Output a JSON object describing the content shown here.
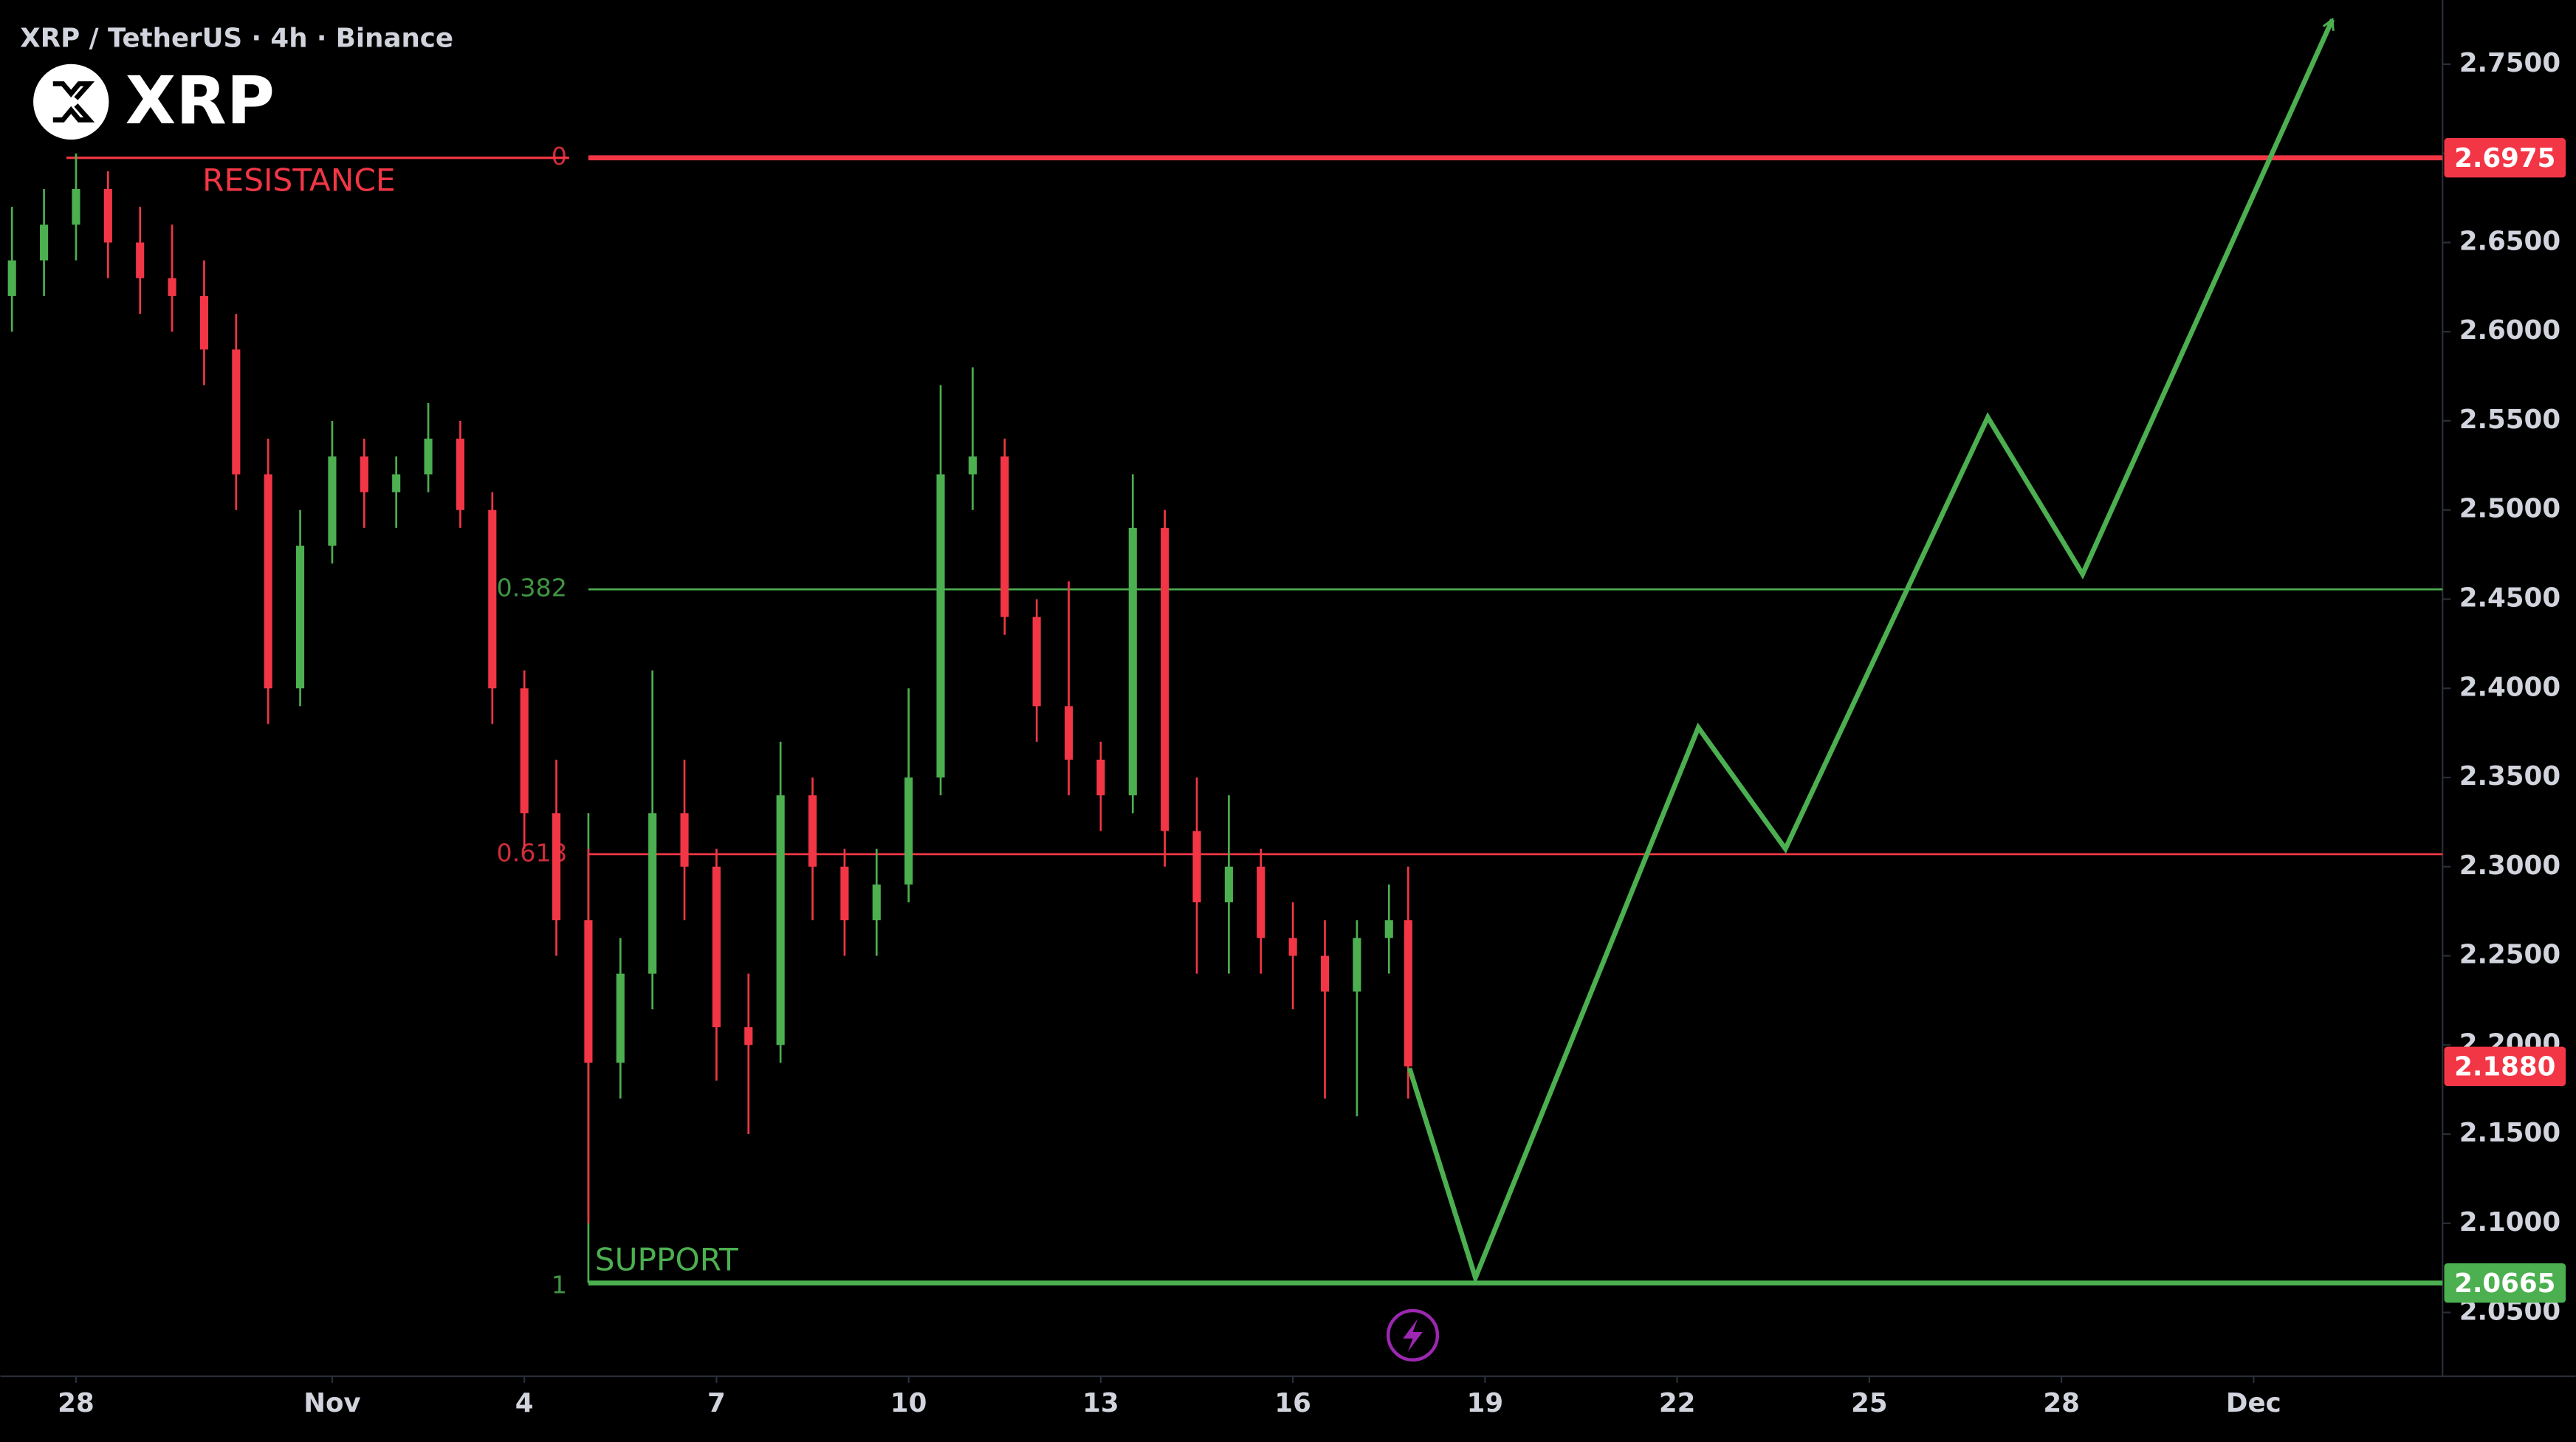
{
  "chart_data": {
    "type": "candlestick",
    "title": "XRP / TetherUS · 4h · Binance",
    "symbol": "XRP",
    "up_color": "#4caf50",
    "down_color": "#f23645",
    "xlim": [
      -1.18,
      36.95
    ],
    "xticks": [
      {
        "value": 0,
        "label": "28"
      },
      {
        "value": 4,
        "label": "Nov"
      },
      {
        "value": 7,
        "label": "4"
      },
      {
        "value": 10,
        "label": "7"
      },
      {
        "value": 13,
        "label": "10"
      },
      {
        "value": 16,
        "label": "13"
      },
      {
        "value": 19,
        "label": "16"
      },
      {
        "value": 22,
        "label": "19"
      },
      {
        "value": 25,
        "label": "22"
      },
      {
        "value": 28,
        "label": "25"
      },
      {
        "value": 31,
        "label": "28"
      },
      {
        "value": 34,
        "label": "Dec"
      }
    ],
    "ylim": [
      2.0142,
      2.786
    ],
    "yticks": [
      {
        "value": 2.05,
        "label": "2.0500"
      },
      {
        "value": 2.1,
        "label": "2.1000"
      },
      {
        "value": 2.15,
        "label": "2.1500"
      },
      {
        "value": 2.2,
        "label": "2.2000"
      },
      {
        "value": 2.25,
        "label": "2.2500"
      },
      {
        "value": 2.3,
        "label": "2.3000"
      },
      {
        "value": 2.35,
        "label": "2.3500"
      },
      {
        "value": 2.4,
        "label": "2.4000"
      },
      {
        "value": 2.45,
        "label": "2.4500"
      },
      {
        "value": 2.5,
        "label": "2.5000"
      },
      {
        "value": 2.55,
        "label": "2.5500"
      },
      {
        "value": 2.6,
        "label": "2.6000"
      },
      {
        "value": 2.65,
        "label": "2.6500"
      },
      {
        "value": 2.7,
        "label": "2.7000"
      },
      {
        "value": 2.75,
        "label": "2.7500"
      }
    ],
    "candles": {
      "x": [
        -1,
        -0.5,
        0,
        0.5,
        1,
        1.5,
        2,
        2.5,
        3,
        3.5,
        4,
        4.5,
        5,
        5.5,
        6,
        6.5,
        7,
        7.5,
        8,
        8.5,
        9,
        9.5,
        10,
        10.5,
        11,
        11.5,
        12,
        12.5,
        13,
        13.5,
        14,
        14.5,
        15,
        15.5,
        16,
        16.5,
        17,
        17.5,
        18,
        18.5,
        19,
        19.5,
        20,
        20.5,
        20.8
      ],
      "open": [
        2.62,
        2.64,
        2.66,
        2.68,
        2.65,
        2.63,
        2.62,
        2.59,
        2.52,
        2.4,
        2.48,
        2.53,
        2.51,
        2.52,
        2.54,
        2.5,
        2.4,
        2.33,
        2.27,
        2.19,
        2.24,
        2.33,
        2.3,
        2.21,
        2.2,
        2.34,
        2.3,
        2.27,
        2.29,
        2.35,
        2.52,
        2.53,
        2.44,
        2.39,
        2.36,
        2.34,
        2.49,
        2.32,
        2.28,
        2.3,
        2.26,
        2.25,
        2.23,
        2.26,
        2.27
      ],
      "high": [
        2.67,
        2.68,
        2.7,
        2.69,
        2.67,
        2.66,
        2.64,
        2.61,
        2.54,
        2.5,
        2.55,
        2.54,
        2.53,
        2.56,
        2.55,
        2.51,
        2.41,
        2.36,
        2.31,
        2.26,
        2.41,
        2.36,
        2.31,
        2.24,
        2.37,
        2.35,
        2.31,
        2.31,
        2.4,
        2.57,
        2.58,
        2.54,
        2.45,
        2.46,
        2.37,
        2.52,
        2.5,
        2.35,
        2.34,
        2.31,
        2.28,
        2.27,
        2.27,
        2.29,
        2.3
      ],
      "low": [
        2.6,
        2.62,
        2.64,
        2.63,
        2.61,
        2.6,
        2.57,
        2.5,
        2.38,
        2.39,
        2.47,
        2.49,
        2.49,
        2.51,
        2.49,
        2.38,
        2.31,
        2.25,
        2.1,
        2.17,
        2.22,
        2.27,
        2.18,
        2.15,
        2.19,
        2.27,
        2.25,
        2.25,
        2.28,
        2.34,
        2.5,
        2.43,
        2.37,
        2.34,
        2.32,
        2.33,
        2.3,
        2.24,
        2.24,
        2.24,
        2.22,
        2.17,
        2.16,
        2.24,
        2.17
      ],
      "close": [
        2.64,
        2.66,
        2.68,
        2.65,
        2.63,
        2.62,
        2.59,
        2.52,
        2.4,
        2.48,
        2.53,
        2.51,
        2.52,
        2.54,
        2.5,
        2.4,
        2.33,
        2.27,
        2.19,
        2.24,
        2.33,
        2.3,
        2.21,
        2.2,
        2.34,
        2.3,
        2.27,
        2.29,
        2.35,
        2.52,
        2.53,
        2.44,
        2.39,
        2.36,
        2.34,
        2.49,
        2.32,
        2.28,
        2.3,
        2.26,
        2.25,
        2.23,
        2.26,
        2.27,
        2.188
      ]
    },
    "levels": [
      {
        "name": "0",
        "value": 2.6975,
        "color": "#f23645",
        "annotation": "RESISTANCE"
      },
      {
        "name": "0.382",
        "value": 2.4555,
        "color": "#4caf50"
      },
      {
        "name": "0.618",
        "value": 2.307,
        "color": "#f23645"
      },
      {
        "name": "1",
        "value": 2.0665,
        "color": "#4caf50",
        "annotation": "SUPPORT"
      }
    ],
    "projection": {
      "color": "#4caf50",
      "x": [
        20.82,
        21.85,
        25.33,
        26.69,
        29.85,
        31.33,
        35.23
      ],
      "values": [
        2.187,
        2.0695,
        2.378,
        2.31,
        2.552,
        2.464,
        2.775
      ]
    },
    "price_labels": [
      {
        "value": 2.6975,
        "label": "2.6975",
        "color": "#f23645"
      },
      {
        "value": 2.188,
        "label": "2.1880",
        "color": "#f23645"
      },
      {
        "value": 2.0665,
        "label": "2.0665",
        "color": "#4caf50"
      }
    ]
  }
}
